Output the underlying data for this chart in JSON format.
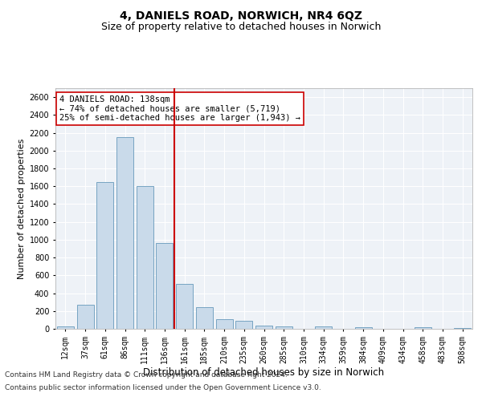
{
  "title1": "4, DANIELS ROAD, NORWICH, NR4 6QZ",
  "title2": "Size of property relative to detached houses in Norwich",
  "xlabel": "Distribution of detached houses by size in Norwich",
  "ylabel": "Number of detached properties",
  "categories": [
    "12sqm",
    "37sqm",
    "61sqm",
    "86sqm",
    "111sqm",
    "136sqm",
    "161sqm",
    "185sqm",
    "210sqm",
    "235sqm",
    "260sqm",
    "285sqm",
    "310sqm",
    "334sqm",
    "359sqm",
    "384sqm",
    "409sqm",
    "434sqm",
    "458sqm",
    "483sqm",
    "508sqm"
  ],
  "values": [
    30,
    270,
    1650,
    2150,
    1600,
    960,
    500,
    245,
    110,
    90,
    35,
    30,
    0,
    25,
    0,
    15,
    0,
    0,
    20,
    0,
    10
  ],
  "bar_color": "#c9daea",
  "bar_edge_color": "#6699bb",
  "vline_color": "#cc0000",
  "vline_index": 5,
  "annotation_text": "4 DANIELS ROAD: 138sqm\n← 74% of detached houses are smaller (5,719)\n25% of semi-detached houses are larger (1,943) →",
  "annotation_box_color": "#ffffff",
  "annotation_box_edge": "#cc0000",
  "ylim": [
    0,
    2700
  ],
  "yticks": [
    0,
    200,
    400,
    600,
    800,
    1000,
    1200,
    1400,
    1600,
    1800,
    2000,
    2200,
    2400,
    2600
  ],
  "footnote1": "Contains HM Land Registry data © Crown copyright and database right 2024.",
  "footnote2": "Contains public sector information licensed under the Open Government Licence v3.0.",
  "background_color": "#eef2f7",
  "grid_color": "#ffffff",
  "title1_fontsize": 10,
  "title2_fontsize": 9,
  "xlabel_fontsize": 8.5,
  "ylabel_fontsize": 8,
  "tick_fontsize": 7,
  "footnote_fontsize": 6.5,
  "annotation_fontsize": 7.5
}
